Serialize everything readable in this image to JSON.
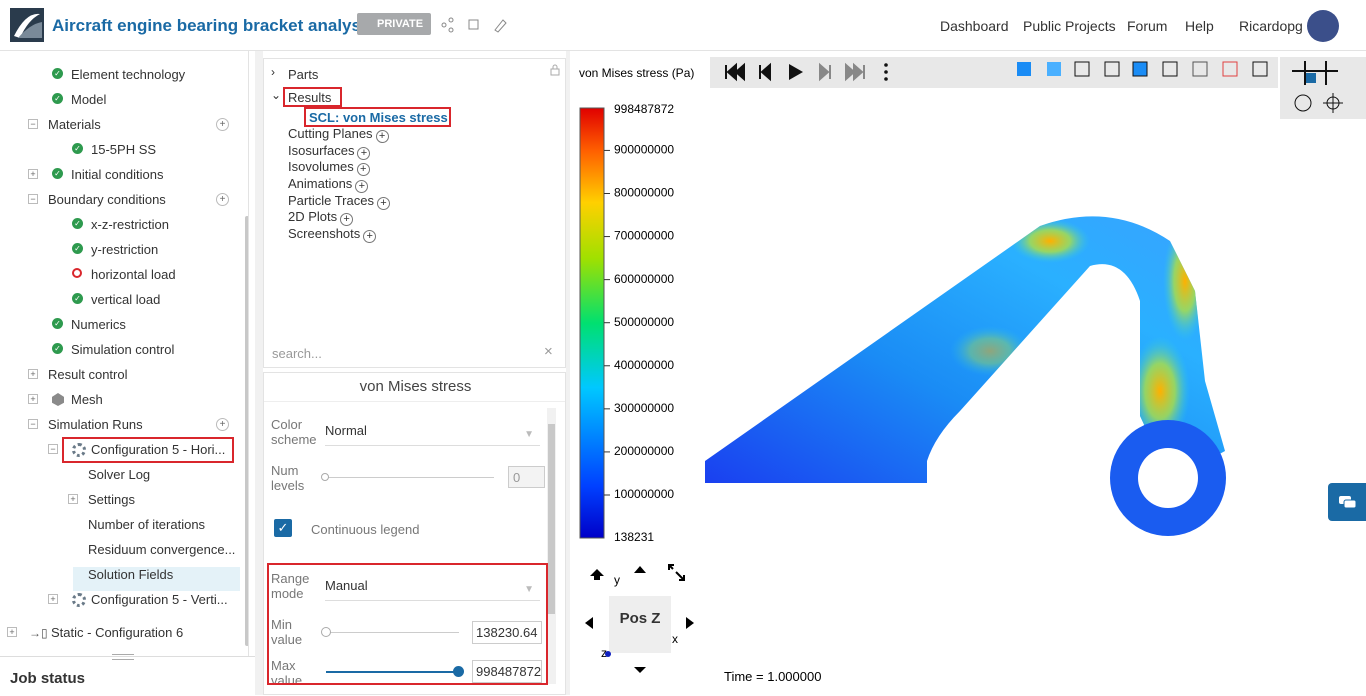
{
  "header": {
    "title": "Aircraft engine bearing bracket analysis",
    "badge": "PRIVATE",
    "nav": [
      "Dashboard",
      "Public Projects",
      "Forum",
      "Help"
    ],
    "user": "Ricardopg"
  },
  "tree": {
    "items": [
      "Element technology",
      "Model",
      "Materials",
      "15-5PH SS",
      "Initial conditions",
      "Boundary conditions",
      "x-z-restriction",
      "y-restriction",
      "horizontal load",
      "vertical load",
      "Numerics",
      "Simulation control",
      "Result control",
      "Mesh",
      "Simulation Runs",
      "Configuration 5 - Hori...",
      "Solver Log",
      "Settings",
      "Number of iterations",
      "Residuum convergence...",
      "Solution Fields",
      "Configuration 5 - Verti...",
      "Static - Configuration 6"
    ]
  },
  "job_status": "Job status",
  "results_tree": {
    "items": [
      "Parts",
      "Results",
      "SCL: von Mises stress",
      "Cutting Planes",
      "Isosurfaces",
      "Isovolumes",
      "Animations",
      "Particle Traces",
      "2D Plots",
      "Screenshots"
    ],
    "search_placeholder": "search..."
  },
  "properties": {
    "title": "von Mises stress",
    "color_scheme": {
      "label": "Color scheme",
      "value": "Normal"
    },
    "num_levels": {
      "label": "Num levels",
      "value": 0
    },
    "continuous_legend": "Continuous legend",
    "range_mode": {
      "label": "Range mode",
      "value": "Manual"
    },
    "min_value": {
      "label": "Min value",
      "value": 138230.64
    },
    "max_value": {
      "label": "Max value",
      "value": 998487872
    }
  },
  "viewer": {
    "legend": {
      "title": "von Mises stress (Pa)",
      "min": 138231,
      "max": 998487872,
      "ticks": [
        100000000,
        200000000,
        300000000,
        400000000,
        500000000,
        600000000,
        700000000,
        800000000,
        900000000
      ]
    },
    "view_label": "Pos Z",
    "axes": [
      "y",
      "x",
      "z"
    ],
    "time": "Time = 1.000000"
  }
}
